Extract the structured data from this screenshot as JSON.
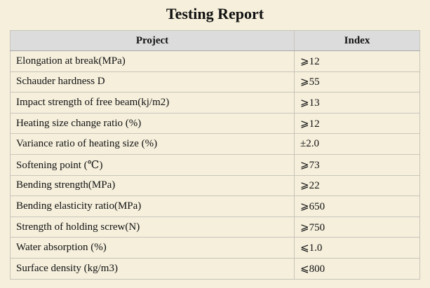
{
  "report": {
    "title": "Testing Report",
    "headers": [
      "Project",
      "Index"
    ],
    "rows": [
      [
        "Elongation at break(MPa)",
        "⩾12"
      ],
      [
        "Schauder hardness D",
        "⩾55"
      ],
      [
        "Impact strength of free beam(kj/m2)",
        "⩾13"
      ],
      [
        "Heating size change ratio (%)",
        "⩾12"
      ],
      [
        "Variance ratio of heating size (%)",
        "±2.0"
      ],
      [
        "Softening point (℃)",
        "⩾73"
      ],
      [
        "Bending strength(MPa)",
        "⩾22"
      ],
      [
        "Bending elasticity ratio(MPa)",
        "⩾650"
      ],
      [
        "Strength of holding screw(N)",
        "⩾750"
      ],
      [
        "Water absorption (%)",
        "⩽1.0"
      ],
      [
        "Surface density (kg/m3)",
        "⩽800"
      ]
    ]
  }
}
